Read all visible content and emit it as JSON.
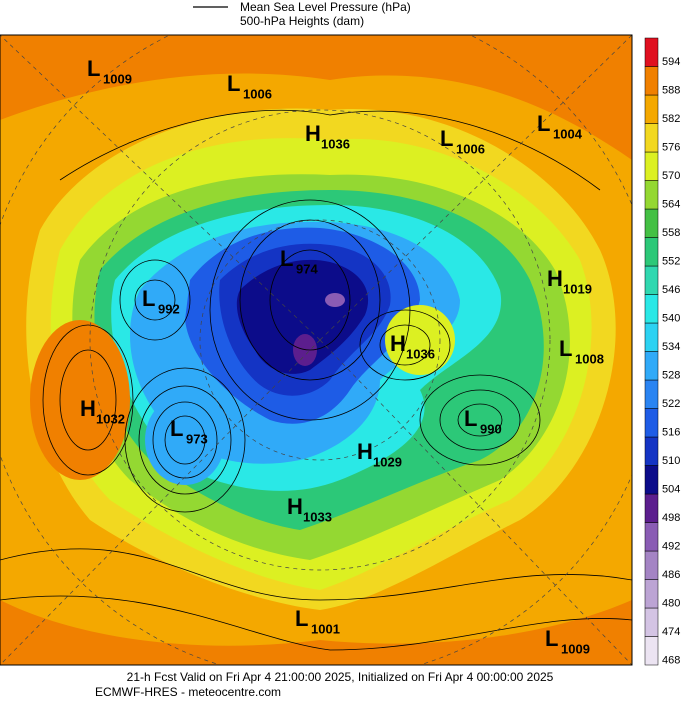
{
  "legend": {
    "lines": [
      "Mean Sea Level Pressure (hPa)",
      "500-hPa Heights (dam)"
    ]
  },
  "colorbar": {
    "levels": [
      468,
      474,
      480,
      486,
      492,
      498,
      504,
      510,
      516,
      522,
      528,
      534,
      540,
      546,
      552,
      558,
      564,
      570,
      576,
      582,
      588,
      594
    ],
    "colors": [
      "#ece4f2",
      "#d4c4e4",
      "#bca4d4",
      "#a484c4",
      "#8a5cb4",
      "#5c1e8e",
      "#0c0c8a",
      "#1434c4",
      "#1e5ce6",
      "#2a84f2",
      "#30aaf8",
      "#2cd2f2",
      "#2ae8e6",
      "#30d8b0",
      "#2cc878",
      "#44c044",
      "#94d832",
      "#dcf022",
      "#f2d820",
      "#f4a800",
      "#f08000",
      "#e01020"
    ]
  },
  "centers": [
    {
      "letter": "L",
      "value": "1009"
    },
    {
      "letter": "L",
      "value": "1006"
    },
    {
      "letter": "H",
      "value": "1036"
    },
    {
      "letter": "L",
      "value": "1006"
    },
    {
      "letter": "L",
      "value": "1004"
    },
    {
      "letter": "L",
      "value": "974"
    },
    {
      "letter": "H",
      "value": "1019"
    },
    {
      "letter": "L",
      "value": "992"
    },
    {
      "letter": "H",
      "value": "1036"
    },
    {
      "letter": "L",
      "value": "1008"
    },
    {
      "letter": "H",
      "value": "1032"
    },
    {
      "letter": "L",
      "value": "973"
    },
    {
      "letter": "L",
      "value": "990"
    },
    {
      "letter": "H",
      "value": "1029"
    },
    {
      "letter": "H",
      "value": "1033"
    },
    {
      "letter": "L",
      "value": "1001"
    },
    {
      "letter": "L",
      "value": "1009"
    }
  ],
  "footer": [
    "21-h Fcst Valid on Fri Apr  4 21:00:00 2025, Initialized on Fri Apr  4 00:00:00 2025",
    "ECMWF-HRES - meteocentre.com"
  ]
}
